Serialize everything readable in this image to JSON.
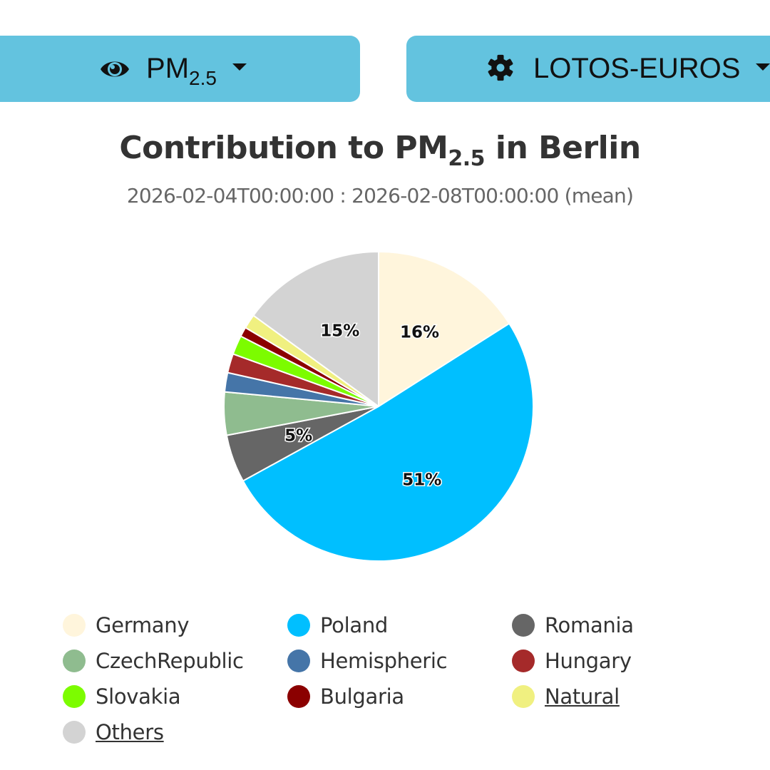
{
  "toolbar": {
    "pollutant_button": {
      "icon": "eye-icon",
      "label_main": "PM",
      "label_sub": "2.5"
    },
    "model_button": {
      "icon": "gear-icon",
      "label": "LOTOS-EUROS"
    }
  },
  "chart": {
    "title_prefix": "Contribution to PM",
    "title_sub": "2.5",
    "title_suffix": " in Berlin",
    "subtitle": "2026-02-04T00:00:00 : 2026-02-08T00:00:00 (mean)"
  },
  "chart_data": {
    "type": "pie",
    "title": "Contribution to PM2.5 in Berlin",
    "subtitle": "2026-02-04T00:00:00 : 2026-02-08T00:00:00 (mean)",
    "categories": [
      "Germany",
      "Poland",
      "Romania",
      "CzechRepublic",
      "Hemispheric",
      "Hungary",
      "Slovakia",
      "Bulgaria",
      "Natural",
      "Others"
    ],
    "values": [
      16,
      51,
      5,
      4.5,
      2,
      2,
      2,
      1,
      1.5,
      15
    ],
    "colors": [
      "#fff5dc",
      "#00bfff",
      "#666666",
      "#8fbc8f",
      "#4575a8",
      "#a52a2a",
      "#7cfc00",
      "#8b0000",
      "#f0f080",
      "#d3d3d3"
    ],
    "data_labels": [
      "16%",
      "51%",
      "5%",
      "",
      "",
      "",
      "",
      "",
      "",
      "15%"
    ],
    "legend_position": "bottom",
    "legend_underlined": [
      "Natural",
      "Others"
    ]
  },
  "legend": {
    "items": [
      {
        "label": "Germany",
        "color": "#fff5dc",
        "underlined": false
      },
      {
        "label": "Poland",
        "color": "#00bfff",
        "underlined": false
      },
      {
        "label": "Romania",
        "color": "#666666",
        "underlined": false
      },
      {
        "label": "CzechRepublic",
        "color": "#8fbc8f",
        "underlined": false
      },
      {
        "label": "Hemispheric",
        "color": "#4575a8",
        "underlined": false
      },
      {
        "label": "Hungary",
        "color": "#a52a2a",
        "underlined": false
      },
      {
        "label": "Slovakia",
        "color": "#7cfc00",
        "underlined": false
      },
      {
        "label": "Bulgaria",
        "color": "#8b0000",
        "underlined": false
      },
      {
        "label": "Natural",
        "color": "#f0f080",
        "underlined": true
      },
      {
        "label": "Others",
        "color": "#d3d3d3",
        "underlined": true
      }
    ]
  }
}
